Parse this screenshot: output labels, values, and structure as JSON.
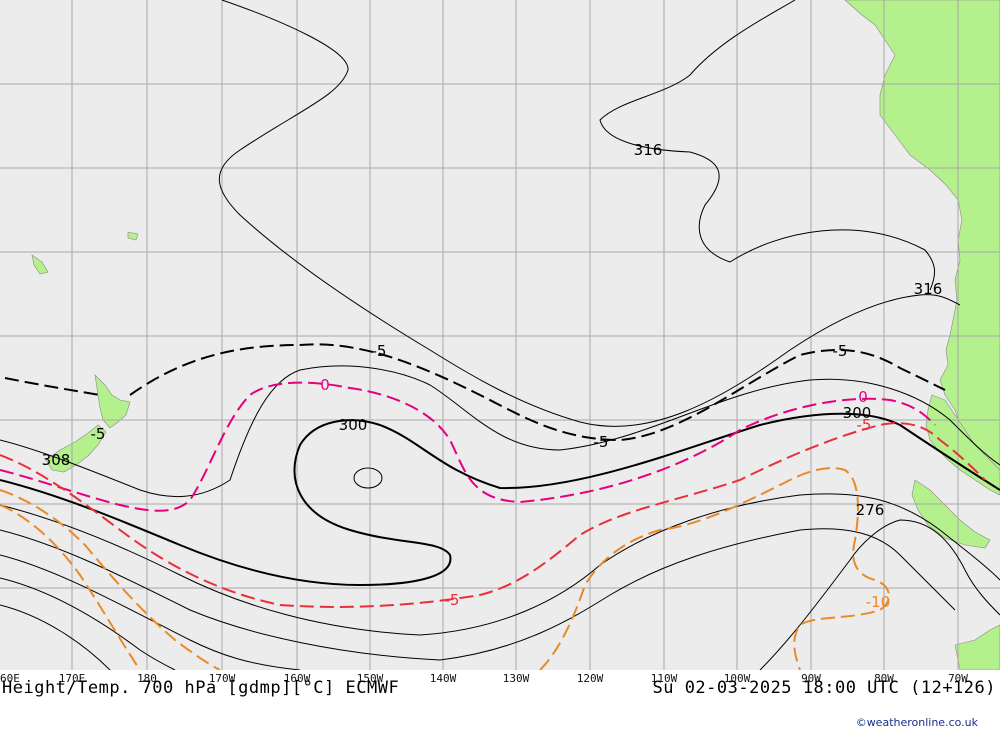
{
  "map": {
    "title": "Height/Temp. 700 hPa [gdmp][°C] ECMWF",
    "valid_time": "Su 02-03-2025 18:00 UTC (12+126)",
    "credit": "©weatheronline.co.uk",
    "colors": {
      "ocean": "#ececec",
      "land": "#b4f08c",
      "grid": "#a9a9a9",
      "height_contour": "#000000",
      "temp_minus5": "#000000",
      "temp_0": "#e6007e",
      "temp_minus5_red": "#e8303a",
      "temp_minus10": "#e88a2a"
    },
    "longitude_labels": [
      "60E",
      "170E",
      "180",
      "170W",
      "160W",
      "150W",
      "140W",
      "130W",
      "120W",
      "110W",
      "100W",
      "90W",
      "80W",
      "70W"
    ],
    "contour_labels": {
      "h316_a": "316",
      "h316_b": "316",
      "h308": "308",
      "h300_a": "300",
      "h300_b": "300",
      "h276": "276",
      "t_minus5_a": "-5",
      "t_minus5_b": "-5",
      "t_minus5_c": "-5",
      "t_minus5_nz": "-5",
      "t_0_a": "0",
      "t_0_b": "0",
      "t_minus5_red_a": "-5",
      "t_minus5_red_b": "-5",
      "t_minus10": "-10"
    }
  }
}
